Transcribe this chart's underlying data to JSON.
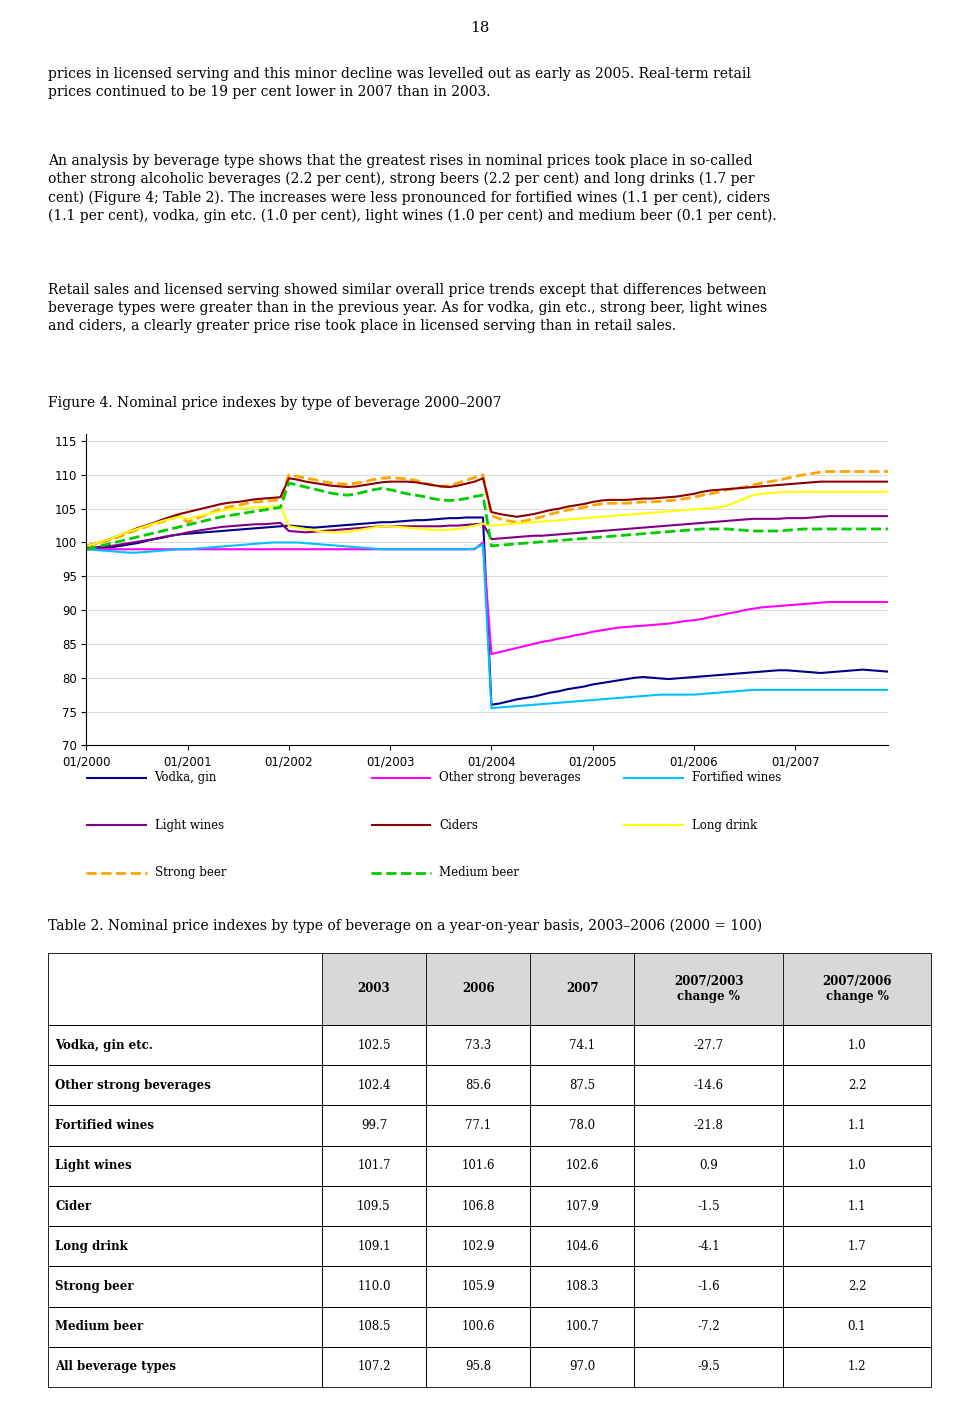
{
  "page_number": "18",
  "para1_lines": [
    "prices in licensed serving and this minor decline was levelled out as early as 2005. Real-term retail",
    "prices continued to be 19 per cent lower in 2007 than in 2003."
  ],
  "para2_lines": [
    "An analysis by beverage type shows that the greatest rises in nominal prices took place in so-called",
    "other strong alcoholic beverages (2.2 per cent), strong beers (2.2 per cent) and long drinks (1.7 per",
    "cent) (Figure 4; Table 2). The increases were less pronounced for fortified wines (1.1 per cent), ciders",
    "(1.1 per cent), vodka, gin etc. (1.0 per cent), light wines (1.0 per cent) and medium beer (0.1 per cent)."
  ],
  "para3_lines": [
    "Retail sales and licensed serving showed similar overall price trends except that differences between",
    "beverage types were greater than in the previous year. As for vodka, gin etc., strong beer, light wines",
    "and ciders, a clearly greater price rise took place in licensed serving than in retail sales."
  ],
  "figure_title": "Figure 4. Nominal price indexes by type of beverage 2000–2007",
  "table_title": "Table 2. Nominal price indexes by type of beverage on a year-on-year basis, 2003–2006 (2000 = 100)",
  "ylim": [
    70,
    116
  ],
  "yticks": [
    70,
    75,
    80,
    85,
    90,
    95,
    100,
    105,
    110,
    115
  ],
  "series": {
    "Vodka, gin": {
      "color": "#00008B",
      "linestyle": "solid",
      "linewidth": 1.5,
      "pre2004": [
        99.0,
        99.1,
        99.2,
        99.3,
        99.5,
        99.7,
        99.9,
        100.2,
        100.5,
        100.7,
        101.0,
        101.2,
        101.3,
        101.4,
        101.5,
        101.6,
        101.7,
        101.8,
        101.9,
        102.0,
        102.1,
        102.2,
        102.3,
        102.4,
        102.5,
        102.4,
        102.3,
        102.2,
        102.3,
        102.4,
        102.5,
        102.6,
        102.7,
        102.8,
        102.9,
        103.0,
        103.0,
        103.1,
        103.2,
        103.3,
        103.3,
        103.4,
        103.5,
        103.6,
        103.6,
        103.7,
        103.7,
        103.7
      ],
      "drop_value": 76.0,
      "post2004": [
        76.2,
        76.5,
        76.8,
        77.0,
        77.2,
        77.5,
        77.8,
        78.0,
        78.3,
        78.5,
        78.7,
        79.0,
        79.2,
        79.4,
        79.6,
        79.8,
        80.0,
        80.1,
        80.0,
        79.9,
        79.8,
        79.9,
        80.0,
        80.1,
        80.2,
        80.3,
        80.4,
        80.5,
        80.6,
        80.7,
        80.8,
        80.9,
        81.0,
        81.1,
        81.1,
        81.0,
        80.9,
        80.8,
        80.7,
        80.8,
        80.9,
        81.0,
        81.1,
        81.2,
        81.1,
        81.0,
        80.9
      ]
    },
    "Light wines": {
      "color": "#800080",
      "linestyle": "solid",
      "linewidth": 1.5,
      "pre2004": [
        99.2,
        99.3,
        99.4,
        99.5,
        99.7,
        99.9,
        100.1,
        100.3,
        100.5,
        100.8,
        101.0,
        101.2,
        101.5,
        101.7,
        101.9,
        102.1,
        102.3,
        102.4,
        102.5,
        102.6,
        102.7,
        102.7,
        102.8,
        102.9,
        101.7,
        101.6,
        101.5,
        101.6,
        101.7,
        101.8,
        101.9,
        102.0,
        102.1,
        102.2,
        102.3,
        102.4,
        102.4,
        102.4,
        102.4,
        102.4,
        102.4,
        102.4,
        102.4,
        102.5,
        102.5,
        102.6,
        102.7,
        102.8
      ],
      "drop_value": 100.5,
      "post2004": [
        100.6,
        100.7,
        100.8,
        100.9,
        101.0,
        101.0,
        101.1,
        101.2,
        101.3,
        101.4,
        101.5,
        101.6,
        101.7,
        101.8,
        101.9,
        102.0,
        102.1,
        102.2,
        102.3,
        102.4,
        102.5,
        102.6,
        102.7,
        102.8,
        102.9,
        103.0,
        103.1,
        103.2,
        103.3,
        103.4,
        103.5,
        103.5,
        103.5,
        103.5,
        103.6,
        103.6,
        103.6,
        103.7,
        103.8,
        103.9,
        103.9,
        103.9,
        103.9,
        103.9,
        103.9,
        103.9,
        103.9
      ]
    },
    "Strong beer": {
      "color": "#FFA500",
      "linestyle": "dashed",
      "linewidth": 2.0,
      "pre2004": [
        99.5,
        99.8,
        100.1,
        100.5,
        100.9,
        101.4,
        101.9,
        102.3,
        102.7,
        103.1,
        103.5,
        103.9,
        103.0,
        103.5,
        104.0,
        104.5,
        105.0,
        105.3,
        105.5,
        105.8,
        106.0,
        106.1,
        106.2,
        106.3,
        110.0,
        109.8,
        109.5,
        109.3,
        109.0,
        108.8,
        108.7,
        108.6,
        108.8,
        109.0,
        109.3,
        109.5,
        109.6,
        109.5,
        109.4,
        109.2,
        108.8,
        108.5,
        108.3,
        108.4,
        108.8,
        109.2,
        109.6,
        110.0
      ],
      "drop_value": 104.0,
      "post2004": [
        103.5,
        103.2,
        103.0,
        103.2,
        103.5,
        103.8,
        104.2,
        104.5,
        104.8,
        105.0,
        105.2,
        105.5,
        105.7,
        105.8,
        105.8,
        105.8,
        105.9,
        106.0,
        106.0,
        106.1,
        106.2,
        106.3,
        106.5,
        106.7,
        107.0,
        107.2,
        107.5,
        107.8,
        108.0,
        108.2,
        108.5,
        108.8,
        109.0,
        109.2,
        109.5,
        109.8,
        110.0,
        110.2,
        110.4,
        110.5,
        110.5,
        110.5,
        110.5,
        110.5,
        110.5,
        110.5,
        110.5
      ]
    },
    "Other strong beverages": {
      "color": "#FF00FF",
      "linestyle": "solid",
      "linewidth": 1.5,
      "pre2004": [
        99.0,
        99.0,
        99.0,
        99.0,
        99.0,
        99.0,
        99.0,
        99.0,
        99.0,
        99.0,
        99.0,
        99.0,
        99.0,
        99.0,
        99.0,
        99.0,
        99.0,
        99.0,
        99.0,
        99.0,
        99.0,
        99.0,
        99.0,
        99.0,
        99.0,
        99.0,
        99.0,
        99.0,
        99.0,
        99.0,
        99.0,
        99.0,
        99.0,
        99.0,
        99.0,
        99.0,
        99.0,
        99.0,
        99.0,
        99.0,
        99.0,
        99.0,
        99.0,
        99.0,
        99.0,
        99.0,
        99.0,
        100.0
      ],
      "drop_value": 83.5,
      "post2004": [
        83.8,
        84.1,
        84.4,
        84.7,
        85.0,
        85.3,
        85.5,
        85.8,
        86.0,
        86.3,
        86.5,
        86.8,
        87.0,
        87.2,
        87.4,
        87.5,
        87.6,
        87.7,
        87.8,
        87.9,
        88.0,
        88.2,
        88.4,
        88.5,
        88.7,
        89.0,
        89.2,
        89.5,
        89.7,
        90.0,
        90.2,
        90.4,
        90.5,
        90.6,
        90.7,
        90.8,
        90.9,
        91.0,
        91.1,
        91.2,
        91.2,
        91.2,
        91.2,
        91.2,
        91.2,
        91.2,
        91.2
      ]
    },
    "Ciders": {
      "color": "#8B0000",
      "linestyle": "solid",
      "linewidth": 1.5,
      "pre2004": [
        99.5,
        99.8,
        100.2,
        100.6,
        101.1,
        101.6,
        102.1,
        102.5,
        102.9,
        103.4,
        103.8,
        104.2,
        104.5,
        104.8,
        105.1,
        105.4,
        105.7,
        105.9,
        106.0,
        106.2,
        106.4,
        106.5,
        106.6,
        106.7,
        109.5,
        109.3,
        109.0,
        108.8,
        108.6,
        108.4,
        108.3,
        108.2,
        108.3,
        108.5,
        108.7,
        108.9,
        109.0,
        109.0,
        109.0,
        108.9,
        108.7,
        108.5,
        108.3,
        108.2,
        108.4,
        108.7,
        109.0,
        109.5
      ],
      "drop_value": 104.5,
      "post2004": [
        104.2,
        104.0,
        103.8,
        104.0,
        104.2,
        104.5,
        104.8,
        105.0,
        105.3,
        105.5,
        105.7,
        106.0,
        106.2,
        106.3,
        106.3,
        106.3,
        106.4,
        106.5,
        106.5,
        106.6,
        106.7,
        106.8,
        107.0,
        107.2,
        107.5,
        107.7,
        107.8,
        107.9,
        108.0,
        108.1,
        108.2,
        108.3,
        108.4,
        108.5,
        108.6,
        108.7,
        108.8,
        108.9,
        109.0,
        109.0,
        109.0,
        109.0,
        109.0,
        109.0,
        109.0,
        109.0,
        109.0
      ]
    },
    "Fortified wines": {
      "color": "#00BFFF",
      "linestyle": "solid",
      "linewidth": 1.5,
      "pre2004": [
        99.0,
        98.9,
        98.8,
        98.7,
        98.6,
        98.5,
        98.5,
        98.6,
        98.7,
        98.8,
        98.9,
        99.0,
        99.0,
        99.1,
        99.2,
        99.3,
        99.4,
        99.5,
        99.6,
        99.7,
        99.8,
        99.9,
        100.0,
        100.0,
        100.0,
        100.0,
        99.9,
        99.8,
        99.7,
        99.6,
        99.5,
        99.4,
        99.3,
        99.2,
        99.1,
        99.0,
        99.0,
        99.0,
        99.0,
        99.0,
        99.0,
        99.0,
        99.0,
        99.0,
        99.0,
        99.0,
        99.1,
        99.7
      ],
      "drop_value": 75.5,
      "post2004": [
        75.6,
        75.7,
        75.8,
        75.9,
        76.0,
        76.1,
        76.2,
        76.3,
        76.4,
        76.5,
        76.6,
        76.7,
        76.8,
        76.9,
        77.0,
        77.1,
        77.2,
        77.3,
        77.4,
        77.5,
        77.5,
        77.5,
        77.5,
        77.5,
        77.6,
        77.7,
        77.8,
        77.9,
        78.0,
        78.1,
        78.2,
        78.2,
        78.2,
        78.2,
        78.2,
        78.2,
        78.2,
        78.2,
        78.2,
        78.2,
        78.2,
        78.2,
        78.2,
        78.2,
        78.2,
        78.2,
        78.2
      ]
    },
    "Long drink": {
      "color": "#FFFF00",
      "linestyle": "solid",
      "linewidth": 1.5,
      "pre2004": [
        99.5,
        99.8,
        100.2,
        100.6,
        101.1,
        101.6,
        102.0,
        102.4,
        102.8,
        103.2,
        103.5,
        103.8,
        103.5,
        103.8,
        104.1,
        104.4,
        104.7,
        104.9,
        105.0,
        105.1,
        105.2,
        105.2,
        105.3,
        105.4,
        102.4,
        102.2,
        102.0,
        101.8,
        101.6,
        101.5,
        101.5,
        101.6,
        101.8,
        102.0,
        102.2,
        102.4,
        102.4,
        102.3,
        102.2,
        102.1,
        102.0,
        101.9,
        101.8,
        101.9,
        102.0,
        102.2,
        102.5,
        102.8
      ],
      "drop_value": 102.5,
      "post2004": [
        102.6,
        102.7,
        102.8,
        102.9,
        103.0,
        103.1,
        103.2,
        103.3,
        103.4,
        103.5,
        103.6,
        103.7,
        103.8,
        103.9,
        104.0,
        104.1,
        104.2,
        104.3,
        104.4,
        104.5,
        104.6,
        104.7,
        104.8,
        104.9,
        105.0,
        105.1,
        105.2,
        105.5,
        106.0,
        106.5,
        107.0,
        107.2,
        107.3,
        107.4,
        107.5,
        107.5,
        107.5,
        107.5,
        107.5,
        107.5,
        107.5,
        107.5,
        107.5,
        107.5,
        107.5,
        107.5,
        107.5
      ]
    },
    "Medium beer": {
      "color": "#00CC00",
      "linestyle": "dashed",
      "linewidth": 2.0,
      "pre2004": [
        99.0,
        99.3,
        99.6,
        99.9,
        100.2,
        100.5,
        100.8,
        101.1,
        101.4,
        101.7,
        102.0,
        102.3,
        102.6,
        102.9,
        103.2,
        103.5,
        103.8,
        104.0,
        104.2,
        104.4,
        104.6,
        104.8,
        105.0,
        105.2,
        108.8,
        108.5,
        108.2,
        107.9,
        107.6,
        107.3,
        107.1,
        107.0,
        107.2,
        107.5,
        107.8,
        108.0,
        107.8,
        107.5,
        107.2,
        107.0,
        106.8,
        106.5,
        106.3,
        106.2,
        106.3,
        106.5,
        106.8,
        107.0
      ],
      "drop_value": 99.5,
      "post2004": [
        99.6,
        99.7,
        99.8,
        99.9,
        100.0,
        100.1,
        100.2,
        100.3,
        100.4,
        100.5,
        100.6,
        100.7,
        100.8,
        100.9,
        101.0,
        101.1,
        101.2,
        101.3,
        101.4,
        101.5,
        101.6,
        101.7,
        101.8,
        101.9,
        102.0,
        102.0,
        102.0,
        102.0,
        101.9,
        101.8,
        101.7,
        101.7,
        101.7,
        101.7,
        101.8,
        101.9,
        102.0,
        102.0,
        102.0,
        102.0,
        102.0,
        102.0,
        102.0,
        102.0,
        102.0,
        102.0,
        102.0
      ]
    }
  },
  "legend_entries": [
    [
      "Vodka, gin",
      "#00008B",
      "solid",
      1.5
    ],
    [
      "Other strong beverages",
      "#FF00FF",
      "solid",
      1.5
    ],
    [
      "Fortified wines",
      "#00BFFF",
      "solid",
      1.5
    ],
    [
      "Light wines",
      "#800080",
      "solid",
      1.5
    ],
    [
      "Ciders",
      "#8B0000",
      "solid",
      1.5
    ],
    [
      "Long drink",
      "#FFFF00",
      "solid",
      1.5
    ],
    [
      "Strong beer",
      "#FFA500",
      "dashed",
      2.0
    ],
    [
      "Medium beer",
      "#00CC00",
      "dashed",
      2.0
    ]
  ],
  "table_headers": [
    "",
    "2003",
    "2006",
    "2007",
    "2007/2003\nchange %",
    "2007/2006\nchange %"
  ],
  "table_rows": [
    [
      "Vodka, gin etc.",
      "102.5",
      "73.3",
      "74.1",
      "-27.7",
      "1.0"
    ],
    [
      "Other strong beverages",
      "102.4",
      "85.6",
      "87.5",
      "-14.6",
      "2.2"
    ],
    [
      "Fortified wines",
      "99.7",
      "77.1",
      "78.0",
      "-21.8",
      "1.1"
    ],
    [
      "Light wines",
      "101.7",
      "101.6",
      "102.6",
      "0.9",
      "1.0"
    ],
    [
      "Cider",
      "109.5",
      "106.8",
      "107.9",
      "-1.5",
      "1.1"
    ],
    [
      "Long drink",
      "109.1",
      "102.9",
      "104.6",
      "-4.1",
      "1.7"
    ],
    [
      "Strong beer",
      "110.0",
      "105.9",
      "108.3",
      "-1.6",
      "2.2"
    ],
    [
      "Medium beer",
      "108.5",
      "100.6",
      "100.7",
      "-7.2",
      "0.1"
    ],
    [
      "All beverage types",
      "107.2",
      "95.8",
      "97.0",
      "-9.5",
      "1.2"
    ]
  ]
}
